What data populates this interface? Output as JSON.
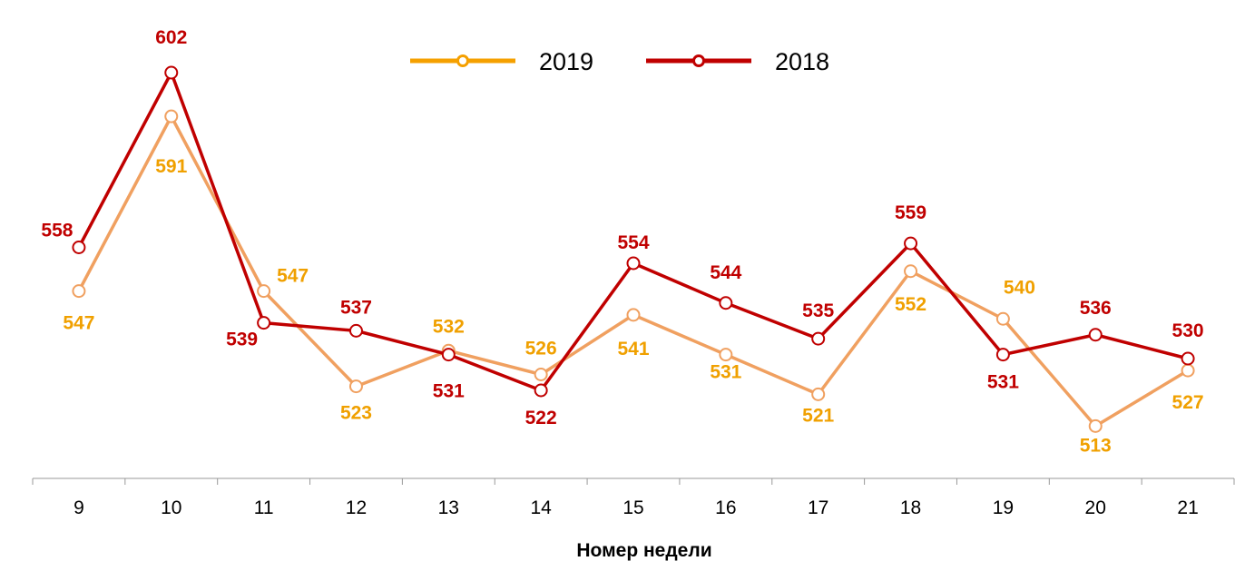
{
  "chart_data": {
    "type": "line",
    "title": "",
    "xlabel": "Номер недели",
    "ylabel": "",
    "categories": [
      "9",
      "10",
      "11",
      "12",
      "13",
      "14",
      "15",
      "16",
      "17",
      "18",
      "19",
      "20",
      "21"
    ],
    "ylim": [
      480,
      610
    ],
    "grid": false,
    "legend_placement": "top-center",
    "series": [
      {
        "name": "2019",
        "color": "#F0A060",
        "label_color": "#F0A000",
        "legend_color": "#F5A000",
        "values": [
          547,
          591,
          547,
          523,
          532,
          526,
          541,
          531,
          521,
          552,
          540,
          513,
          527
        ]
      },
      {
        "name": "2018",
        "color": "#C00000",
        "label_color": "#C00000",
        "legend_color": "#C00000",
        "values": [
          558,
          602,
          539,
          537,
          531,
          522,
          554,
          544,
          535,
          559,
          531,
          536,
          530
        ]
      }
    ]
  }
}
